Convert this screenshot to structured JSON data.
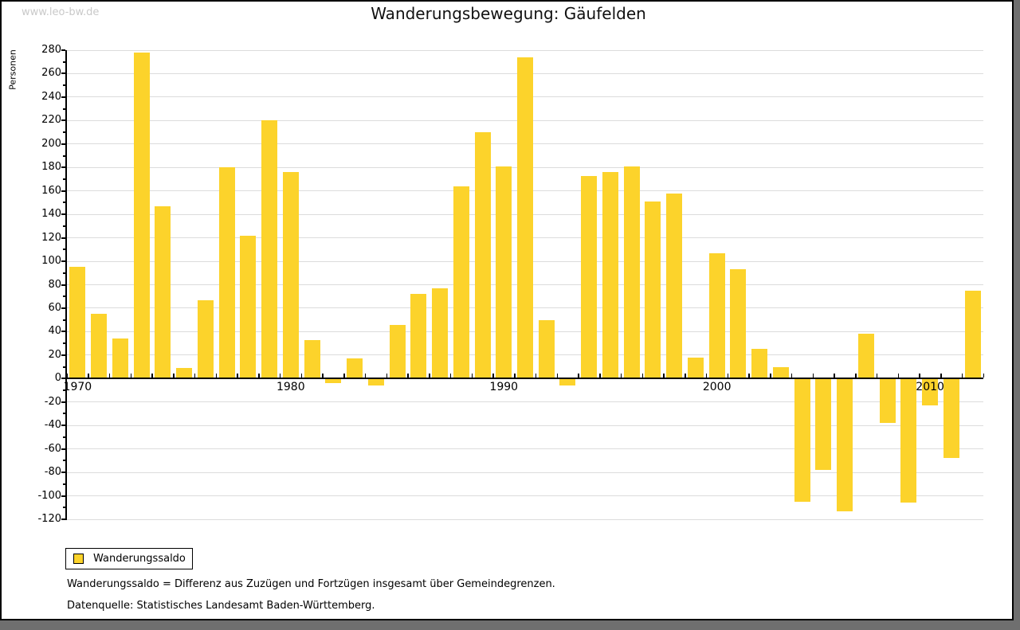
{
  "watermark": "www.leo-bw.de",
  "title": "Wanderungsbewegung: Gäufelden",
  "legend": {
    "label": "Wanderungssaldo"
  },
  "footnotes": {
    "definition": "Wanderungssaldo = Differenz aus Zuzügen und Fortzügen insgesamt über Gemeindegrenzen.",
    "source": "Datenquelle: Statistisches Landesamt Baden-Württemberg."
  },
  "colors": {
    "bar": "#fcd32b",
    "grid": "#dcdcdc",
    "axis": "#000000",
    "watermark": "#c9c9c9",
    "frame_shadow": "#6f6f6f"
  },
  "chart_data": {
    "type": "bar",
    "title": "Wanderungsbewegung: Gäufelden",
    "xlabel": "",
    "ylabel": "Personen",
    "ylim": [
      -120,
      280
    ],
    "y_tick_step": 20,
    "y_minor_tick_step": 10,
    "grid": true,
    "legend_position": "bottom-left",
    "series_name": "Wanderungssaldo",
    "x_tick_labels": [
      "1970",
      "1980",
      "1990",
      "2000",
      "2010"
    ],
    "categories": [
      1970,
      1971,
      1972,
      1973,
      1974,
      1975,
      1976,
      1977,
      1978,
      1979,
      1980,
      1981,
      1982,
      1983,
      1984,
      1985,
      1986,
      1987,
      1988,
      1989,
      1990,
      1991,
      1992,
      1993,
      1994,
      1995,
      1996,
      1997,
      1998,
      1999,
      2000,
      2001,
      2002,
      2003,
      2004,
      2005,
      2006,
      2007,
      2008,
      2009,
      2010,
      2011,
      2012
    ],
    "values": [
      95,
      55,
      34,
      278,
      147,
      9,
      67,
      180,
      122,
      220,
      176,
      33,
      -4,
      17,
      -6,
      46,
      72,
      77,
      164,
      210,
      181,
      274,
      50,
      -6,
      173,
      176,
      181,
      151,
      158,
      18,
      107,
      93,
      25,
      10,
      -105,
      -78,
      -113,
      38,
      -38,
      -106,
      -23,
      -68,
      75
    ]
  }
}
